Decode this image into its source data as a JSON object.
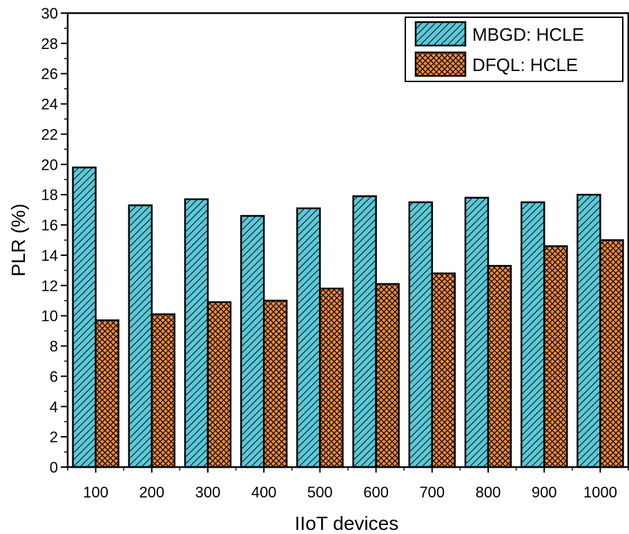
{
  "chart_data": {
    "type": "bar",
    "xlabel": "IIoT devices",
    "ylabel": "PLR (%)",
    "categories": [
      "100",
      "200",
      "300",
      "400",
      "500",
      "600",
      "700",
      "800",
      "900",
      "1000"
    ],
    "ylim": [
      0,
      30
    ],
    "yticks": [
      0,
      2,
      4,
      6,
      8,
      10,
      12,
      14,
      16,
      18,
      20,
      22,
      24,
      26,
      28,
      30
    ],
    "grid": false,
    "legend_position": "top-right",
    "series": [
      {
        "name": "MBGD: HCLE",
        "color": "#5bc8d8",
        "pattern": "diagonal-hatch",
        "values": [
          19.8,
          17.3,
          17.7,
          16.6,
          17.1,
          17.9,
          17.5,
          17.8,
          17.5,
          18.0
        ]
      },
      {
        "name": "DFQL: HCLE",
        "color": "#f08a3c",
        "pattern": "cross-hatch",
        "values": [
          9.7,
          10.1,
          10.9,
          11.0,
          11.8,
          12.1,
          12.8,
          13.3,
          14.6,
          15.0
        ]
      }
    ]
  }
}
